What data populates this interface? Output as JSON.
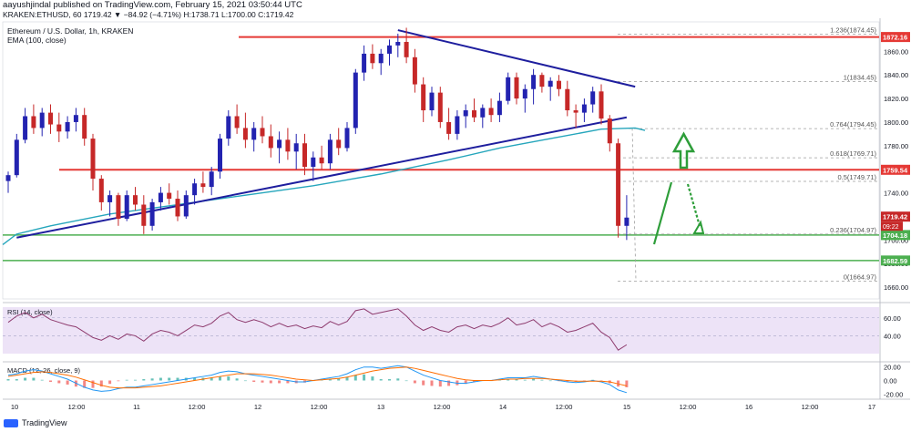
{
  "header": {
    "publisher": "aayushjindal published on TradingView.com, February 15, 2021 03:50:44 UTC",
    "ticker_line": "KRAKEN:ETHUSD, 60",
    "ohlc": "1719.42 ▼ −84.92 (−4.71%) H:1738.71 L:1700.00 C:1719.42"
  },
  "chart_data": {
    "type": "candlestick",
    "title": "Ethereum / U.S. Dollar, 1h, KRAKEN",
    "indicator_label": "EMA (100, close)",
    "ylim": [
      1650,
      1885
    ],
    "price_ticks": [
      1660,
      1680,
      1700,
      1720,
      1740,
      1760,
      1780,
      1800,
      1820,
      1840,
      1860
    ],
    "price_tick_labels": [
      "1660.00",
      "1680.00",
      "1700.00",
      "1720.00",
      "1740.00",
      "1760.00",
      "1780.00",
      "1800.00",
      "1820.00",
      "1840.00",
      "1860.00"
    ],
    "x_ticks": [
      "10",
      "12:00",
      "11",
      "12:00",
      "12",
      "12:00",
      "13",
      "12:00",
      "14",
      "12:00",
      "15",
      "12:00",
      "16",
      "12:00",
      "17"
    ],
    "horizontal_levels": [
      {
        "label": "1872.16",
        "value": 1872.16,
        "color": "#e53935"
      },
      {
        "label": "1759.54",
        "value": 1759.54,
        "color": "#e53935"
      },
      {
        "label": "1704.18",
        "value": 1704.18,
        "color": "#4caf50"
      },
      {
        "label": "1682.59",
        "value": 1682.59,
        "color": "#4caf50"
      }
    ],
    "fib_levels": [
      {
        "label": "1.236(1874.45)",
        "value": 1874.45
      },
      {
        "label": "1(1834.45)",
        "value": 1834.45
      },
      {
        "label": "0.764(1794.45)",
        "value": 1794.45
      },
      {
        "label": "0.618(1769.71)",
        "value": 1769.71
      },
      {
        "label": "0.5(1749.71)",
        "value": 1749.71
      },
      {
        "label": "0.236(1704.97)",
        "value": 1704.97
      },
      {
        "label": "0(1664.97)",
        "value": 1664.97
      }
    ],
    "last_price": "1719.42",
    "countdown": "09:22",
    "candles": [
      [
        1750,
        1758,
        1740,
        1755
      ],
      [
        1755,
        1790,
        1753,
        1785
      ],
      [
        1785,
        1812,
        1782,
        1805
      ],
      [
        1805,
        1815,
        1790,
        1795
      ],
      [
        1795,
        1812,
        1788,
        1808
      ],
      [
        1808,
        1815,
        1790,
        1798
      ],
      [
        1798,
        1808,
        1783,
        1792
      ],
      [
        1792,
        1805,
        1786,
        1800
      ],
      [
        1800,
        1812,
        1792,
        1806
      ],
      [
        1806,
        1812,
        1780,
        1786
      ],
      [
        1786,
        1790,
        1742,
        1752
      ],
      [
        1752,
        1755,
        1725,
        1732
      ],
      [
        1732,
        1742,
        1720,
        1738
      ],
      [
        1738,
        1740,
        1712,
        1718
      ],
      [
        1718,
        1742,
        1716,
        1738
      ],
      [
        1738,
        1745,
        1725,
        1730
      ],
      [
        1730,
        1738,
        1705,
        1712
      ],
      [
        1712,
        1735,
        1708,
        1732
      ],
      [
        1732,
        1745,
        1725,
        1740
      ],
      [
        1740,
        1748,
        1730,
        1735
      ],
      [
        1735,
        1742,
        1716,
        1720
      ],
      [
        1720,
        1742,
        1718,
        1738
      ],
      [
        1738,
        1752,
        1730,
        1748
      ],
      [
        1748,
        1758,
        1740,
        1745
      ],
      [
        1745,
        1762,
        1738,
        1758
      ],
      [
        1758,
        1790,
        1752,
        1786
      ],
      [
        1786,
        1810,
        1780,
        1805
      ],
      [
        1805,
        1815,
        1790,
        1795
      ],
      [
        1795,
        1808,
        1778,
        1785
      ],
      [
        1785,
        1800,
        1775,
        1795
      ],
      [
        1795,
        1805,
        1782,
        1788
      ],
      [
        1788,
        1798,
        1770,
        1778
      ],
      [
        1778,
        1792,
        1765,
        1785
      ],
      [
        1785,
        1795,
        1768,
        1775
      ],
      [
        1775,
        1790,
        1760,
        1782
      ],
      [
        1782,
        1790,
        1755,
        1762
      ],
      [
        1762,
        1775,
        1750,
        1770
      ],
      [
        1770,
        1780,
        1760,
        1765
      ],
      [
        1765,
        1790,
        1760,
        1785
      ],
      [
        1785,
        1795,
        1772,
        1778
      ],
      [
        1778,
        1800,
        1775,
        1795
      ],
      [
        1795,
        1845,
        1790,
        1842
      ],
      [
        1842,
        1865,
        1835,
        1858
      ],
      [
        1858,
        1866,
        1845,
        1850
      ],
      [
        1850,
        1862,
        1840,
        1858
      ],
      [
        1858,
        1870,
        1848,
        1865
      ],
      [
        1865,
        1875,
        1855,
        1868
      ],
      [
        1868,
        1880,
        1850,
        1855
      ],
      [
        1855,
        1862,
        1825,
        1832
      ],
      [
        1832,
        1838,
        1800,
        1810
      ],
      [
        1810,
        1830,
        1805,
        1825
      ],
      [
        1825,
        1830,
        1795,
        1800
      ],
      [
        1800,
        1812,
        1785,
        1790
      ],
      [
        1790,
        1810,
        1785,
        1805
      ],
      [
        1805,
        1815,
        1795,
        1810
      ],
      [
        1810,
        1820,
        1800,
        1804
      ],
      [
        1804,
        1815,
        1795,
        1812
      ],
      [
        1812,
        1820,
        1800,
        1806
      ],
      [
        1806,
        1825,
        1800,
        1818
      ],
      [
        1818,
        1842,
        1815,
        1838
      ],
      [
        1838,
        1842,
        1815,
        1820
      ],
      [
        1820,
        1832,
        1808,
        1828
      ],
      [
        1828,
        1845,
        1815,
        1840
      ],
      [
        1840,
        1842,
        1825,
        1830
      ],
      [
        1830,
        1838,
        1818,
        1835
      ],
      [
        1835,
        1840,
        1822,
        1828
      ],
      [
        1828,
        1835,
        1805,
        1810
      ],
      [
        1810,
        1815,
        1795,
        1808
      ],
      [
        1808,
        1820,
        1800,
        1815
      ],
      [
        1815,
        1830,
        1808,
        1826
      ],
      [
        1826,
        1832,
        1798,
        1803
      ],
      [
        1803,
        1806,
        1775,
        1782
      ],
      [
        1782,
        1786,
        1702,
        1712
      ],
      [
        1712,
        1738,
        1700,
        1719
      ]
    ],
    "ema100": [
      [
        1,
        1705
      ],
      [
        5,
        1712
      ],
      [
        12,
        1722
      ],
      [
        20,
        1730
      ],
      [
        28,
        1738
      ],
      [
        36,
        1746
      ],
      [
        44,
        1756
      ],
      [
        52,
        1768
      ],
      [
        58,
        1778
      ],
      [
        64,
        1786
      ],
      [
        70,
        1794
      ],
      [
        74,
        1795
      ]
    ],
    "trend_lines": [
      {
        "from": [
          1,
          1702
        ],
        "to": [
          73,
          1804
        ]
      },
      {
        "from": [
          46,
          1878
        ],
        "to": [
          74,
          1830
        ]
      }
    ],
    "rsi": {
      "label": "RSI (14, close)",
      "ticks": [
        "60.00",
        "40.00"
      ],
      "values": [
        55,
        62,
        66,
        60,
        64,
        58,
        55,
        52,
        50,
        44,
        38,
        35,
        40,
        36,
        42,
        40,
        34,
        42,
        46,
        44,
        40,
        46,
        52,
        50,
        54,
        62,
        66,
        58,
        55,
        58,
        55,
        50,
        54,
        50,
        52,
        48,
        51,
        49,
        56,
        52,
        56,
        68,
        70,
        64,
        66,
        68,
        70,
        62,
        52,
        46,
        50,
        46,
        44,
        50,
        52,
        48,
        52,
        50,
        54,
        60,
        52,
        54,
        58,
        50,
        54,
        50,
        44,
        46,
        50,
        54,
        44,
        38,
        24,
        30
      ]
    },
    "macd": {
      "label": "MACD (12, 26, close, 9)",
      "ticks": [
        "20.00",
        "0.00",
        "-20.00"
      ],
      "macd": [
        8,
        10,
        14,
        16,
        14,
        10,
        6,
        2,
        -4,
        -10,
        -14,
        -16,
        -15,
        -12,
        -10,
        -10,
        -8,
        -6,
        -4,
        -2,
        0,
        2,
        4,
        6,
        8,
        12,
        14,
        13,
        10,
        8,
        6,
        4,
        2,
        0,
        -2,
        -2,
        0,
        2,
        4,
        6,
        10,
        16,
        20,
        20,
        18,
        20,
        22,
        20,
        14,
        8,
        4,
        0,
        -2,
        -4,
        -4,
        -2,
        0,
        0,
        2,
        4,
        4,
        4,
        6,
        4,
        2,
        0,
        -2,
        -3,
        -2,
        0,
        -2,
        -6,
        -14,
        -18
      ],
      "signal": [
        6,
        8,
        10,
        12,
        13,
        12,
        10,
        8,
        5,
        1,
        -3,
        -7,
        -10,
        -11,
        -11,
        -11,
        -10,
        -9,
        -8,
        -6,
        -4,
        -2,
        0,
        2,
        4,
        6,
        8,
        10,
        10,
        10,
        9,
        8,
        6,
        4,
        2,
        1,
        0,
        1,
        2,
        3,
        5,
        8,
        11,
        14,
        16,
        18,
        19,
        20,
        18,
        15,
        12,
        9,
        6,
        3,
        1,
        0,
        0,
        0,
        1,
        2,
        2,
        3,
        3,
        3,
        2,
        1,
        0,
        -1,
        -1,
        -1,
        -1,
        -2,
        -5,
        -8
      ]
    }
  },
  "footer": {
    "brand": "TradingView"
  }
}
